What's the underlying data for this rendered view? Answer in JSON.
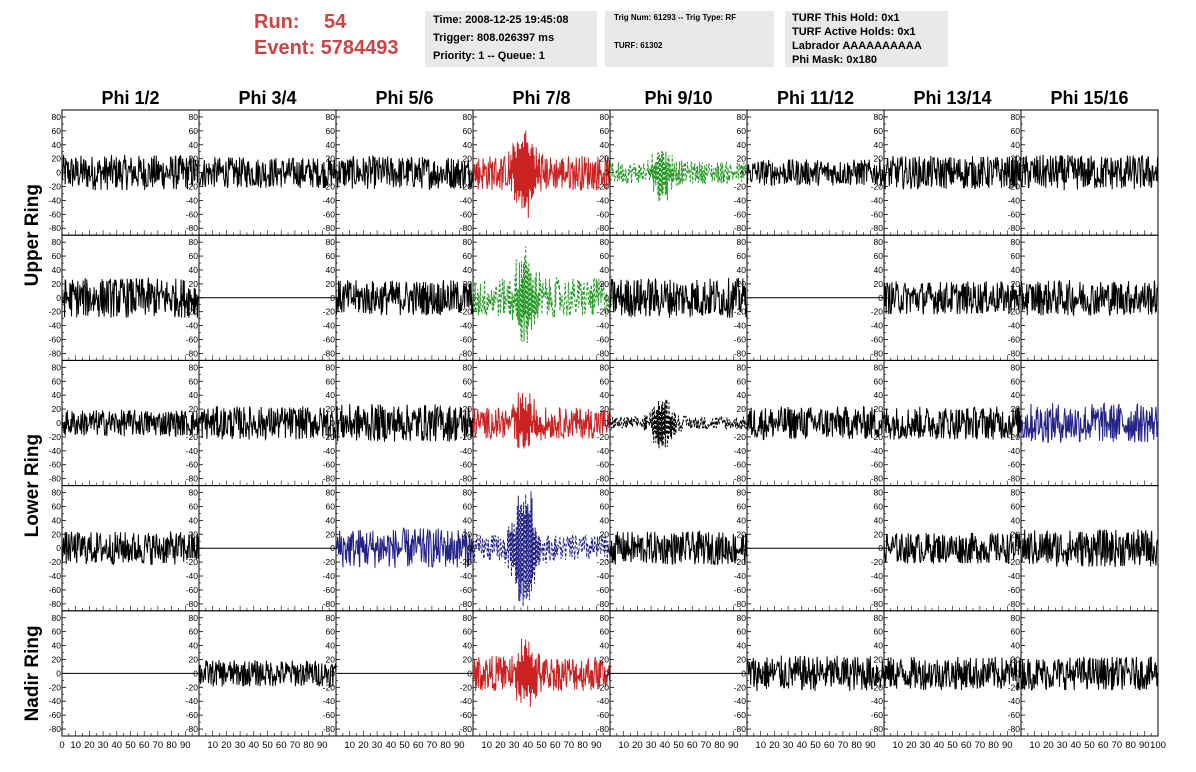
{
  "header": {
    "run_label": "Run:",
    "run_value": "54",
    "event_label": "Event:",
    "event_value": "5784493",
    "time": "Time: 2008-12-25 19:45:08",
    "trigger": "Trigger: 808.026397 ms",
    "priority": "Priority: 1 -- Queue: 1",
    "trig_num": "Trig Num: 61293 -- Trig Type: RF",
    "turf": "TURF: 61302",
    "turf_this_hold": "TURF This Hold: 0x1",
    "turf_active_holds": "TURF Active Holds: 0x1",
    "labrador": "Labrador AAAAAAAAAA",
    "phi_mask": "Phi Mask: 0x180"
  },
  "chart_data": {
    "type": "line",
    "columns": [
      "Phi 1/2",
      "Phi 3/4",
      "Phi 5/6",
      "Phi 7/8",
      "Phi 9/10",
      "Phi 11/12",
      "Phi 13/14",
      "Phi 15/16"
    ],
    "ring_labels": [
      "Upper Ring",
      "Lower Ring",
      "Nadir Ring"
    ],
    "xlim": [
      0,
      100
    ],
    "ylim": [
      -90,
      90
    ],
    "x_ticks": [
      0,
      10,
      20,
      30,
      40,
      50,
      60,
      70,
      80,
      90,
      100
    ],
    "x_tick_labels": [
      "0",
      "10",
      "20",
      "30",
      "40",
      "50",
      "60",
      "70",
      "80",
      "90",
      "100"
    ],
    "y_ticks": [
      -80,
      -60,
      -40,
      -20,
      0,
      20,
      40,
      60,
      80
    ],
    "y_tick_labels": [
      "-80",
      "-60",
      "-40",
      "-20",
      "0",
      "20",
      "40",
      "60",
      "80"
    ],
    "colors": {
      "black": "#000000",
      "red": "#cc2222",
      "green": "#229922",
      "blue": "#222288"
    },
    "rows": [
      [
        {
          "color": "black",
          "style": "solid",
          "amp": 16,
          "kind": "noise"
        },
        {
          "color": "black",
          "style": "solid",
          "amp": 14,
          "kind": "noise"
        },
        {
          "color": "black",
          "style": "solid",
          "amp": 15,
          "kind": "noise"
        },
        {
          "color": "red",
          "style": "solid",
          "amp": 16,
          "kind": "pulse",
          "peak": 55
        },
        {
          "color": "green",
          "style": "dashed",
          "amp": 10,
          "kind": "pulse",
          "peak": 35
        },
        {
          "color": "black",
          "style": "solid",
          "amp": 12,
          "kind": "noise"
        },
        {
          "color": "black",
          "style": "solid",
          "amp": 15,
          "kind": "noise"
        },
        {
          "color": "black",
          "style": "solid",
          "amp": 16,
          "kind": "noise"
        }
      ],
      [
        {
          "color": "black",
          "style": "solid",
          "amp": 18,
          "kind": "noise"
        },
        {
          "color": "black",
          "style": "solid",
          "amp": 0,
          "kind": "flat"
        },
        {
          "color": "black",
          "style": "solid",
          "amp": 16,
          "kind": "noise"
        },
        {
          "color": "green",
          "style": "dashed",
          "amp": 18,
          "kind": "pulse",
          "peak": 60
        },
        {
          "color": "black",
          "style": "solid",
          "amp": 18,
          "kind": "noise"
        },
        {
          "color": "black",
          "style": "solid",
          "amp": 0,
          "kind": "flat"
        },
        {
          "color": "black",
          "style": "solid",
          "amp": 15,
          "kind": "noise"
        },
        {
          "color": "black",
          "style": "solid",
          "amp": 16,
          "kind": "noise"
        }
      ],
      [
        {
          "color": "black",
          "style": "solid",
          "amp": 12,
          "kind": "noise"
        },
        {
          "color": "black",
          "style": "solid",
          "amp": 15,
          "kind": "noise"
        },
        {
          "color": "black",
          "style": "solid",
          "amp": 17,
          "kind": "noise"
        },
        {
          "color": "red",
          "style": "solid",
          "amp": 14,
          "kind": "pulse",
          "peak": 40
        },
        {
          "color": "black",
          "style": "dashed",
          "amp": 6,
          "kind": "pulse",
          "peak": 35
        },
        {
          "color": "black",
          "style": "solid",
          "amp": 15,
          "kind": "noise"
        },
        {
          "color": "black",
          "style": "solid",
          "amp": 15,
          "kind": "noise"
        },
        {
          "color": "blue",
          "style": "solid",
          "amp": 18,
          "kind": "noise"
        }
      ],
      [
        {
          "color": "black",
          "style": "solid",
          "amp": 15,
          "kind": "noise"
        },
        {
          "color": "black",
          "style": "solid",
          "amp": 0,
          "kind": "flat"
        },
        {
          "color": "blue",
          "style": "solid",
          "amp": 18,
          "kind": "noise"
        },
        {
          "color": "blue",
          "style": "dashed",
          "amp": 12,
          "kind": "pulse",
          "peak": 90
        },
        {
          "color": "black",
          "style": "solid",
          "amp": 15,
          "kind": "noise"
        },
        {
          "color": "black",
          "style": "solid",
          "amp": 0,
          "kind": "flat"
        },
        {
          "color": "black",
          "style": "solid",
          "amp": 14,
          "kind": "noise"
        },
        {
          "color": "black",
          "style": "solid",
          "amp": 17,
          "kind": "noise"
        }
      ],
      [
        {
          "color": "black",
          "style": "solid",
          "amp": 0,
          "kind": "flat"
        },
        {
          "color": "black",
          "style": "solid",
          "amp": 12,
          "kind": "noise"
        },
        {
          "color": "black",
          "style": "solid",
          "amp": 0,
          "kind": "flat"
        },
        {
          "color": "red",
          "style": "solid",
          "amp": 16,
          "kind": "pulse",
          "peak": 40
        },
        {
          "color": "black",
          "style": "solid",
          "amp": 0,
          "kind": "flat"
        },
        {
          "color": "black",
          "style": "solid",
          "amp": 16,
          "kind": "noise"
        },
        {
          "color": "black",
          "style": "solid",
          "amp": 15,
          "kind": "noise"
        },
        {
          "color": "black",
          "style": "solid",
          "amp": 15,
          "kind": "noise"
        }
      ]
    ]
  }
}
